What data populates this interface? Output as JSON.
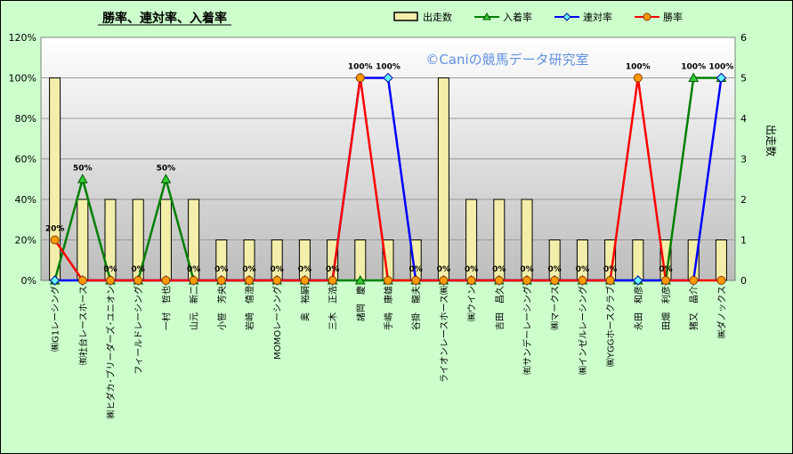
{
  "chart_data": {
    "type": "bar",
    "title": "勝率、連対率、入着率",
    "watermark": "©Caniの競馬データ研究室",
    "categories": [
      "㈱G1レーシング",
      "㈲社台レースホース",
      "㈱ヒダカ･ブリーダーズ･ユニオン",
      "フィールドレーシング",
      "一村　哲也",
      "山元　新二",
      "小笹　芳央",
      "岩崎　僖澄",
      "MOMOレーシング",
      "奥　裕嗣",
      "三木　正浩",
      "諸岡　慶",
      "手嶋　康雄",
      "谷掛　龍夫",
      "ライオンレースホース㈱",
      "㈱ウイン",
      "吉田　昌久",
      "㈲サンデーレーシング",
      "㈱マークス",
      "㈱インゼルレーシング",
      "㈱YGGホースクラブ",
      "永田　和彦",
      "田畑　利彦",
      "猪又　晶介",
      "㈱ダノックス"
    ],
    "series": [
      {
        "name": "出走数",
        "type": "bar",
        "axis": "right",
        "values": [
          5,
          2,
          2,
          2,
          2,
          2,
          1,
          1,
          1,
          1,
          1,
          1,
          1,
          1,
          5,
          2,
          2,
          2,
          1,
          1,
          1,
          1,
          1,
          1,
          1
        ]
      },
      {
        "name": "入着率",
        "type": "line",
        "axis": "left",
        "color": "#008000",
        "marker": "triangle",
        "values": [
          0,
          50,
          0,
          0,
          50,
          0,
          0,
          0,
          0,
          0,
          0,
          0,
          0,
          0,
          0,
          0,
          0,
          0,
          0,
          0,
          0,
          0,
          0,
          100,
          100
        ]
      },
      {
        "name": "連対率",
        "type": "line",
        "axis": "left",
        "color": "#0000ff",
        "marker": "diamond",
        "values": [
          0,
          0,
          0,
          0,
          0,
          0,
          0,
          0,
          0,
          0,
          0,
          100,
          100,
          0,
          0,
          0,
          0,
          0,
          0,
          0,
          0,
          0,
          0,
          0,
          100
        ]
      },
      {
        "name": "勝率",
        "type": "line",
        "axis": "left",
        "color": "#ff0000",
        "marker": "circle",
        "values": [
          20,
          0,
          0,
          0,
          0,
          0,
          0,
          0,
          0,
          0,
          0,
          100,
          0,
          0,
          0,
          0,
          0,
          0,
          0,
          0,
          0,
          100,
          0,
          0,
          0
        ]
      }
    ],
    "y_left": {
      "min": 0,
      "max": 120,
      "step": 20,
      "unit": "%"
    },
    "y_right": {
      "label": "出走数",
      "min": 0,
      "max": 6,
      "step": 1
    },
    "data_labels": [
      {
        "category": 0,
        "text": "20%"
      },
      {
        "category": 1,
        "text": "50%"
      },
      {
        "category": 2,
        "text": "0%"
      },
      {
        "category": 3,
        "text": "0%"
      },
      {
        "category": 4,
        "text": "50%"
      },
      {
        "category": 5,
        "text": "0%"
      },
      {
        "category": 6,
        "text": "0%"
      },
      {
        "category": 7,
        "text": "0%"
      },
      {
        "category": 8,
        "text": "0%"
      },
      {
        "category": 9,
        "text": "0%"
      },
      {
        "category": 10,
        "text": "0%"
      },
      {
        "category": 11,
        "text": "100%"
      },
      {
        "category": 12,
        "text": "100%"
      },
      {
        "category": 13,
        "text": "0%"
      },
      {
        "category": 14,
        "text": "0%"
      },
      {
        "category": 15,
        "text": "0%"
      },
      {
        "category": 16,
        "text": "0%"
      },
      {
        "category": 17,
        "text": "0%"
      },
      {
        "category": 18,
        "text": "0%"
      },
      {
        "category": 19,
        "text": "0%"
      },
      {
        "category": 20,
        "text": "0%"
      },
      {
        "category": 21,
        "text": "100%"
      },
      {
        "category": 22,
        "text": "0%"
      },
      {
        "category": 23,
        "text": "100%"
      },
      {
        "category": 24,
        "text": "100%"
      }
    ],
    "colors": {
      "background": "#ccffcc",
      "plot_gradient_top": "#ffffff",
      "plot_gradient_bottom": "#bdbdbd",
      "bar_fill": "#f3efaa",
      "bar_stroke": "#000000",
      "marker_circle_fill": "#ff9900"
    },
    "legend_position": "top-right",
    "grid": "horizontal"
  }
}
